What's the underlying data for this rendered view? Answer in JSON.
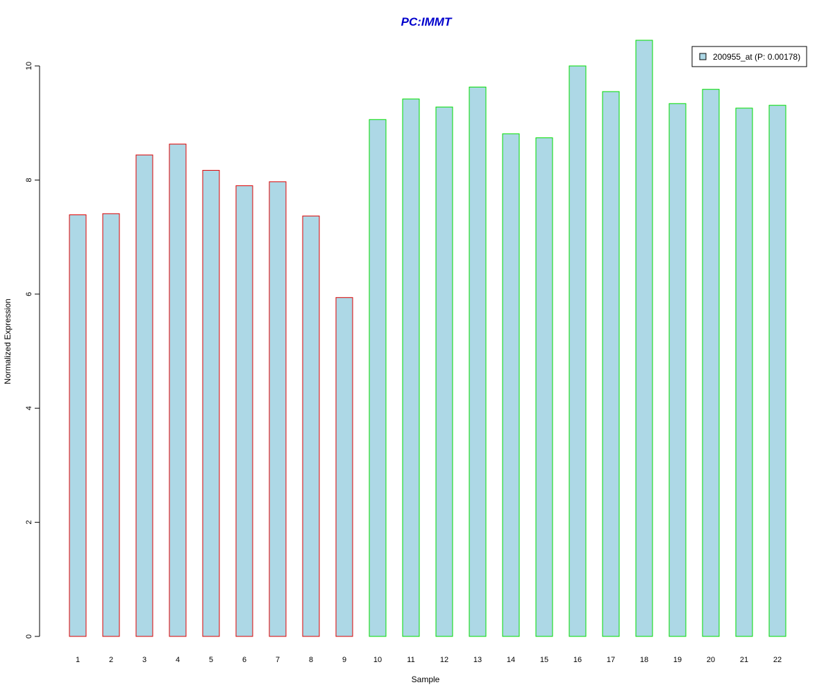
{
  "chart_data": {
    "type": "bar",
    "title": "PC:IMMT",
    "xlabel": "Sample",
    "ylabel": "Normalized Expression",
    "categories": [
      "1",
      "2",
      "3",
      "4",
      "5",
      "6",
      "7",
      "8",
      "9",
      "10",
      "11",
      "12",
      "13",
      "14",
      "15",
      "16",
      "17",
      "18",
      "19",
      "20",
      "21",
      "22"
    ],
    "series": [
      {
        "name": "200955_at (P: 0.00178)",
        "values": [
          7.39,
          7.41,
          8.44,
          8.63,
          8.17,
          7.9,
          7.97,
          7.37,
          5.94,
          9.06,
          9.42,
          9.28,
          9.63,
          8.81,
          8.74,
          10.0,
          9.55,
          10.45,
          9.34,
          9.59,
          9.26,
          9.31
        ]
      }
    ],
    "group_border_colors": [
      "#dd0000",
      "#dd0000",
      "#dd0000",
      "#dd0000",
      "#dd0000",
      "#dd0000",
      "#dd0000",
      "#dd0000",
      "#dd0000",
      "#00dd00",
      "#00dd00",
      "#00dd00",
      "#00dd00",
      "#00dd00",
      "#00dd00",
      "#00dd00",
      "#00dd00",
      "#00dd00",
      "#00dd00",
      "#00dd00",
      "#00dd00",
      "#00dd00"
    ],
    "yticks": [
      "0",
      "2",
      "4",
      "6",
      "8",
      "10"
    ],
    "ylim": [
      0,
      10.5
    ],
    "grid": false,
    "legend_position": "top-right",
    "colors": {
      "bar_fill": "#add8e6",
      "title": "#0000cc"
    }
  }
}
